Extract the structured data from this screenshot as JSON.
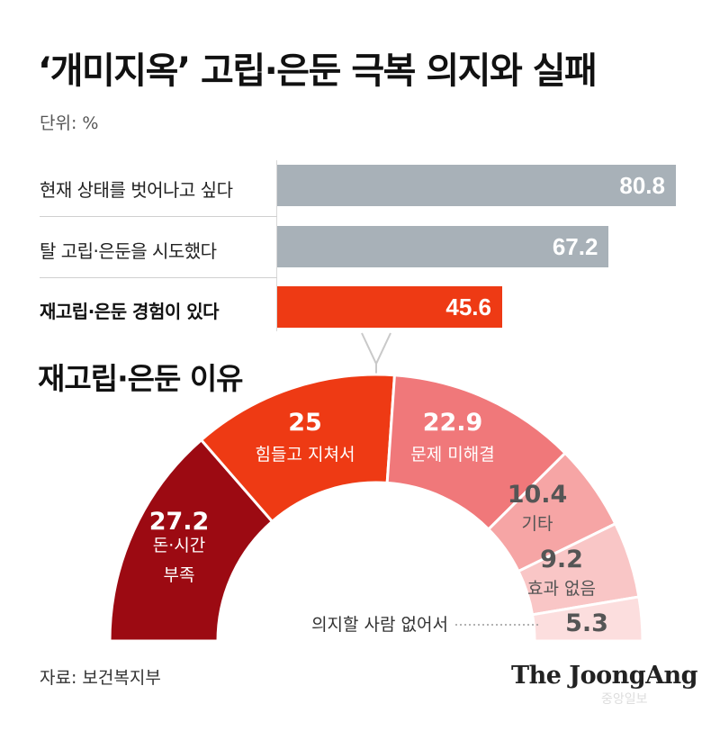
{
  "title": "‘개미지옥’ 고립·은둔 극복 의지와 실패",
  "unit": "단위: %",
  "subtitle": "재고립·은둔 이유",
  "source": "자료: 보건복지부",
  "brand": "The JoongAng",
  "watermark": "중앙일보",
  "colors": {
    "bar_gray": "#a8b1b8",
    "bar_highlight": "#ee3a14",
    "slice_1": "#9c0a12",
    "slice_2": "#ee3a14",
    "slice_3": "#f0787a",
    "slice_4": "#f6a5a5",
    "slice_5": "#f9c6c6",
    "slice_6": "#fcdede"
  },
  "chart_data": [
    {
      "type": "bar",
      "orientation": "horizontal",
      "categories": [
        "현재 상태를 벗어나고 싶다",
        "탈 고립·은둔을 시도했다",
        "재고립·은둔 경험이 있다"
      ],
      "values": [
        80.8,
        67.2,
        45.6
      ],
      "value_labels": [
        "80.8",
        "67.2",
        "45.6"
      ],
      "highlight_index": 2,
      "xlim": [
        0,
        100
      ]
    },
    {
      "type": "pie",
      "variant": "semicircle-donut",
      "slices": [
        {
          "value": 27.2,
          "value_label": "27.2",
          "label": [
            "돈·시간",
            "부족"
          ]
        },
        {
          "value": 25,
          "value_label": "25",
          "label": [
            "힘들고 지쳐서"
          ]
        },
        {
          "value": 22.9,
          "value_label": "22.9",
          "label": [
            "문제 미해결"
          ]
        },
        {
          "value": 10.4,
          "value_label": "10.4",
          "label": [
            "기타"
          ]
        },
        {
          "value": 9.2,
          "value_label": "9.2",
          "label": [
            "효과 없음"
          ]
        },
        {
          "value": 5.3,
          "value_label": "5.3",
          "label": [
            "의지할 사람 없어서"
          ]
        }
      ]
    }
  ]
}
